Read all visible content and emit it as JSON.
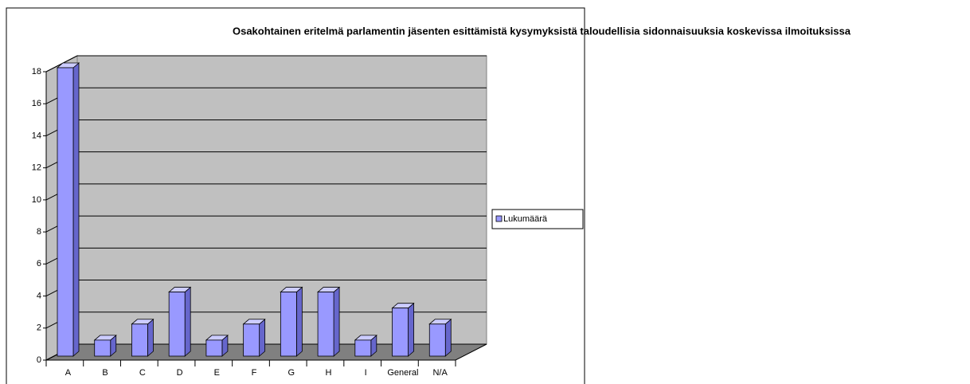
{
  "chart_data": {
    "type": "bar3d",
    "title": "Osakohtainen eritelmä parlamentin jäsenten esittämistä kysymyksistä taloudellisia sidonnaisuuksia koskevissa ilmoituksissa",
    "categories": [
      "A",
      "B",
      "C",
      "D",
      "E",
      "F",
      "G",
      "H",
      "I",
      "General",
      "N/A"
    ],
    "series": [
      {
        "name": "Lukumäärä",
        "color": "#9999ff",
        "values": [
          18,
          1,
          2,
          4,
          1,
          2,
          4,
          4,
          1,
          3,
          2
        ]
      }
    ],
    "ylim": [
      0,
      18
    ],
    "yticks": [
      0,
      2,
      4,
      6,
      8,
      10,
      12,
      14,
      16,
      18
    ],
    "grid": true,
    "legend": "right"
  }
}
